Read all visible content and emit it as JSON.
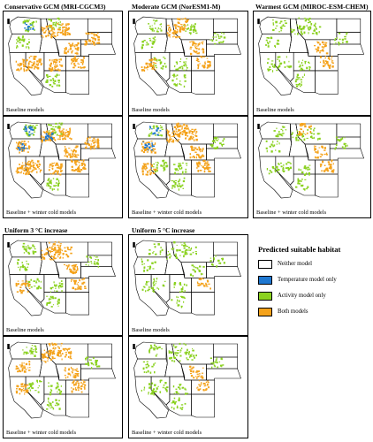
{
  "titles": {
    "col1": "Conservative GCM (MRI-CGCM3)",
    "col2": "Moderate GCM (NorESM1-M)",
    "col3": "Warmest GCM (MIROC-ESM-CHEM)",
    "uni3": "Uniform 3 °C increase",
    "uni5": "Uniform 5 °C increase"
  },
  "labels": {
    "baseline": "Baseline models",
    "winter": "Baseline + winter cold models"
  },
  "legend": {
    "title": "Predicted suitable habitat",
    "items": [
      {
        "label": "Neither model",
        "color": "#ffffff"
      },
      {
        "label": "Temperature model only",
        "color": "#1f78d1"
      },
      {
        "label": "Activity model only",
        "color": "#8ad11f"
      },
      {
        "label": "Both models",
        "color": "#f4a21a"
      }
    ]
  }
}
